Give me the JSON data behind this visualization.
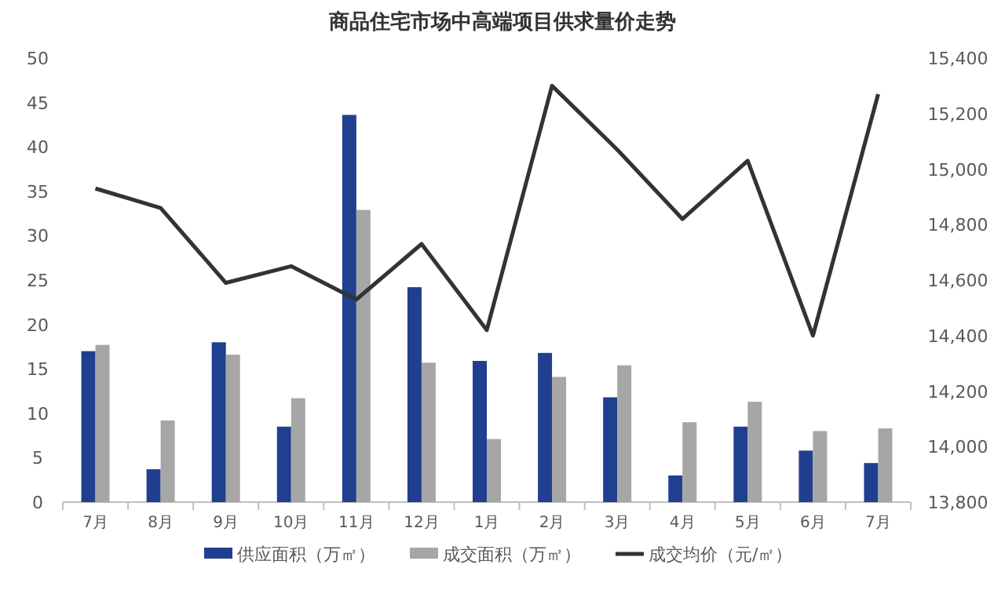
{
  "chart_data": {
    "type": "bar",
    "title": "商品住宅市场中高端项目供求量价走势",
    "categories": [
      "7月",
      "8月",
      "9月",
      "10月",
      "11月",
      "12月",
      "1月",
      "2月",
      "3月",
      "4月",
      "5月",
      "6月",
      "7月"
    ],
    "series": [
      {
        "name": "供应面积（万㎡）",
        "color": "#203f8f",
        "values": [
          17,
          3.7,
          18,
          8.5,
          43.6,
          24.2,
          15.9,
          16.8,
          11.8,
          3,
          8.5,
          5.8,
          4.4
        ]
      },
      {
        "name": "成交面积（万㎡）",
        "color": "#a6a6a6",
        "values": [
          17.7,
          9.2,
          16.6,
          11.7,
          32.9,
          15.7,
          7.1,
          14.1,
          15.4,
          9,
          11.3,
          8,
          8.3
        ]
      },
      {
        "name": "成交均价（元/㎡）",
        "type": "line",
        "axis": "y2",
        "color": "#333333",
        "values": [
          14930,
          14860,
          14590,
          14650,
          14530,
          14730,
          14420,
          15300,
          15070,
          14820,
          15030,
          14400,
          15270
        ]
      }
    ],
    "ylim": [
      0,
      50
    ],
    "yticks": [
      0,
      5,
      10,
      15,
      20,
      25,
      30,
      35,
      40,
      45,
      50
    ],
    "y2lim": [
      13800,
      15400
    ],
    "y2ticks": [
      {
        "value": 13800,
        "label": "13,800"
      },
      {
        "value": 14000,
        "label": "14,000"
      },
      {
        "value": 14200,
        "label": "14,200"
      },
      {
        "value": 14400,
        "label": "14,400"
      },
      {
        "value": 14600,
        "label": "14,600"
      },
      {
        "value": 14800,
        "label": "14,800"
      },
      {
        "value": 15000,
        "label": "15,000"
      },
      {
        "value": 15200,
        "label": "15,200"
      },
      {
        "value": 15400,
        "label": "15,400"
      }
    ],
    "grid": false,
    "legend": "bottom",
    "marker": "none"
  }
}
